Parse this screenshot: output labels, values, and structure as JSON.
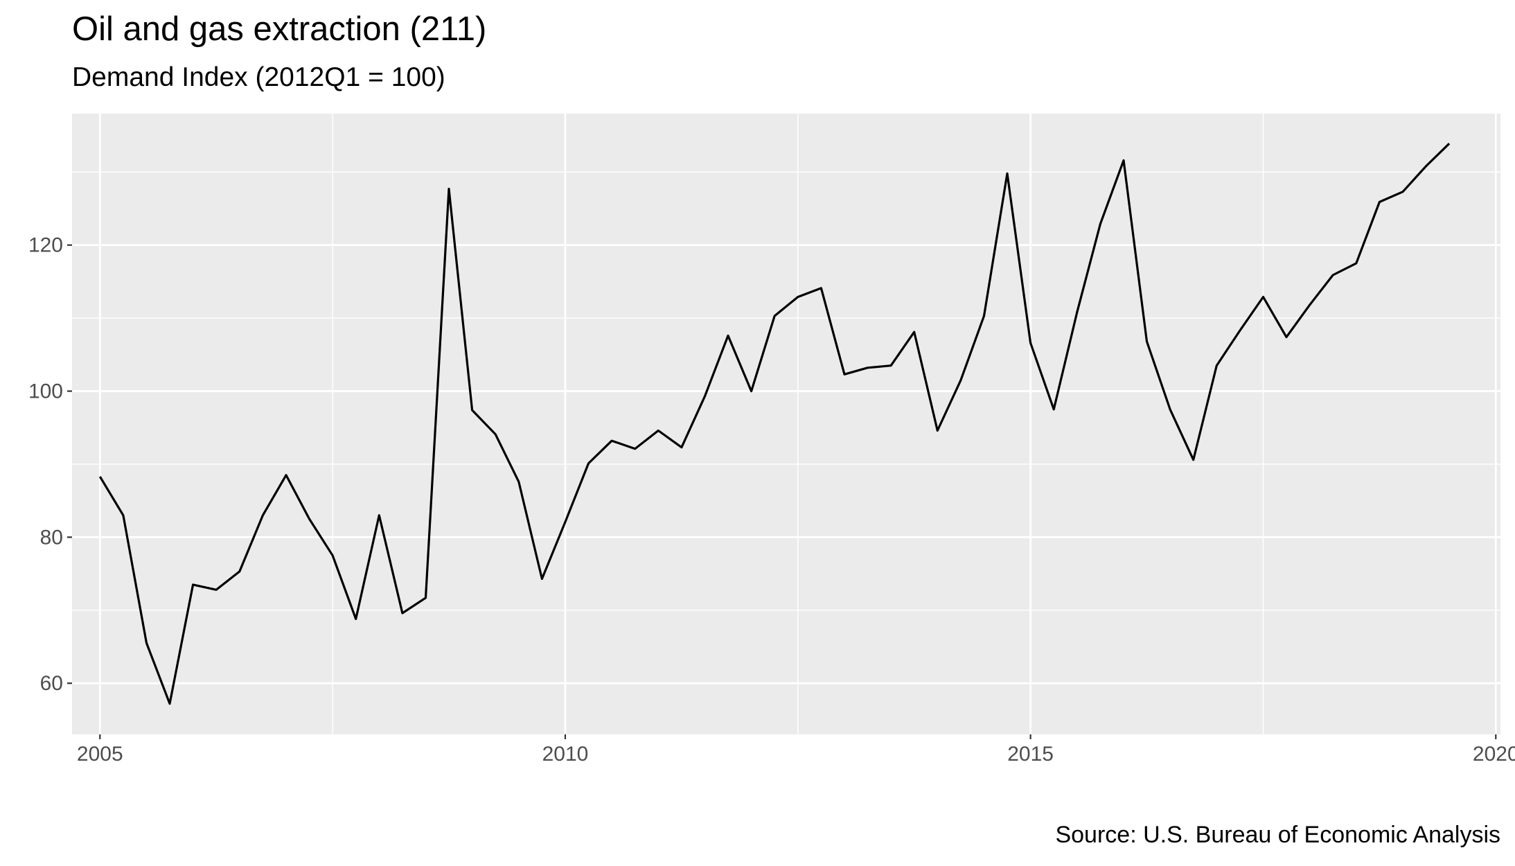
{
  "chart_data": {
    "type": "line",
    "title": "Oil and gas extraction (211)",
    "subtitle": "Demand Index (2012Q1 = 100)",
    "caption": "Source: U.S. Bureau of Economic Analysis",
    "xlabel": "",
    "ylabel": "",
    "xlim": [
      2004.7,
      2020.05
    ],
    "ylim": [
      53,
      138
    ],
    "x_ticks": [
      2005,
      2010,
      2015,
      2020
    ],
    "x_tick_labels": [
      "2005",
      "2010",
      "2015",
      "2020"
    ],
    "y_ticks": [
      60,
      80,
      100,
      120
    ],
    "y_tick_labels": [
      "60",
      "80",
      "100",
      "120"
    ],
    "grid": true,
    "line_color": "#000000",
    "panel_background": "#ebebeb",
    "x": [
      2005.0,
      2005.25,
      2005.5,
      2005.75,
      2006.0,
      2006.25,
      2006.5,
      2006.75,
      2007.0,
      2007.25,
      2007.5,
      2007.75,
      2008.0,
      2008.25,
      2008.5,
      2008.75,
      2009.0,
      2009.25,
      2009.5,
      2009.75,
      2010.0,
      2010.25,
      2010.5,
      2010.75,
      2011.0,
      2011.25,
      2011.5,
      2011.75,
      2012.0,
      2012.25,
      2012.5,
      2012.75,
      2013.0,
      2013.25,
      2013.5,
      2013.75,
      2014.0,
      2014.25,
      2014.5,
      2014.75,
      2015.0,
      2015.25,
      2015.5,
      2015.75,
      2016.0,
      2016.25,
      2016.5,
      2016.75,
      2017.0,
      2017.25,
      2017.5,
      2017.75,
      2018.0,
      2018.25,
      2018.5,
      2018.75,
      2019.0,
      2019.25,
      2019.5
    ],
    "y": [
      88.3,
      83.0,
      65.5,
      57.2,
      73.5,
      72.8,
      75.3,
      83.0,
      88.5,
      82.5,
      77.5,
      68.8,
      83.0,
      69.6,
      71.7,
      127.7,
      97.4,
      94.1,
      87.6,
      74.3,
      82.1,
      90.1,
      93.2,
      92.1,
      94.6,
      92.3,
      99.3,
      107.6,
      100.0,
      110.3,
      112.9,
      114.1,
      102.3,
      103.2,
      103.5,
      108.1,
      94.6,
      101.5,
      110.3,
      129.8,
      106.6,
      97.5,
      110.8,
      122.9,
      131.6,
      106.8,
      97.5,
      90.6,
      103.5,
      108.3,
      112.9,
      107.4,
      111.8,
      115.9,
      117.5,
      125.9,
      127.3,
      130.8,
      133.9
    ]
  }
}
